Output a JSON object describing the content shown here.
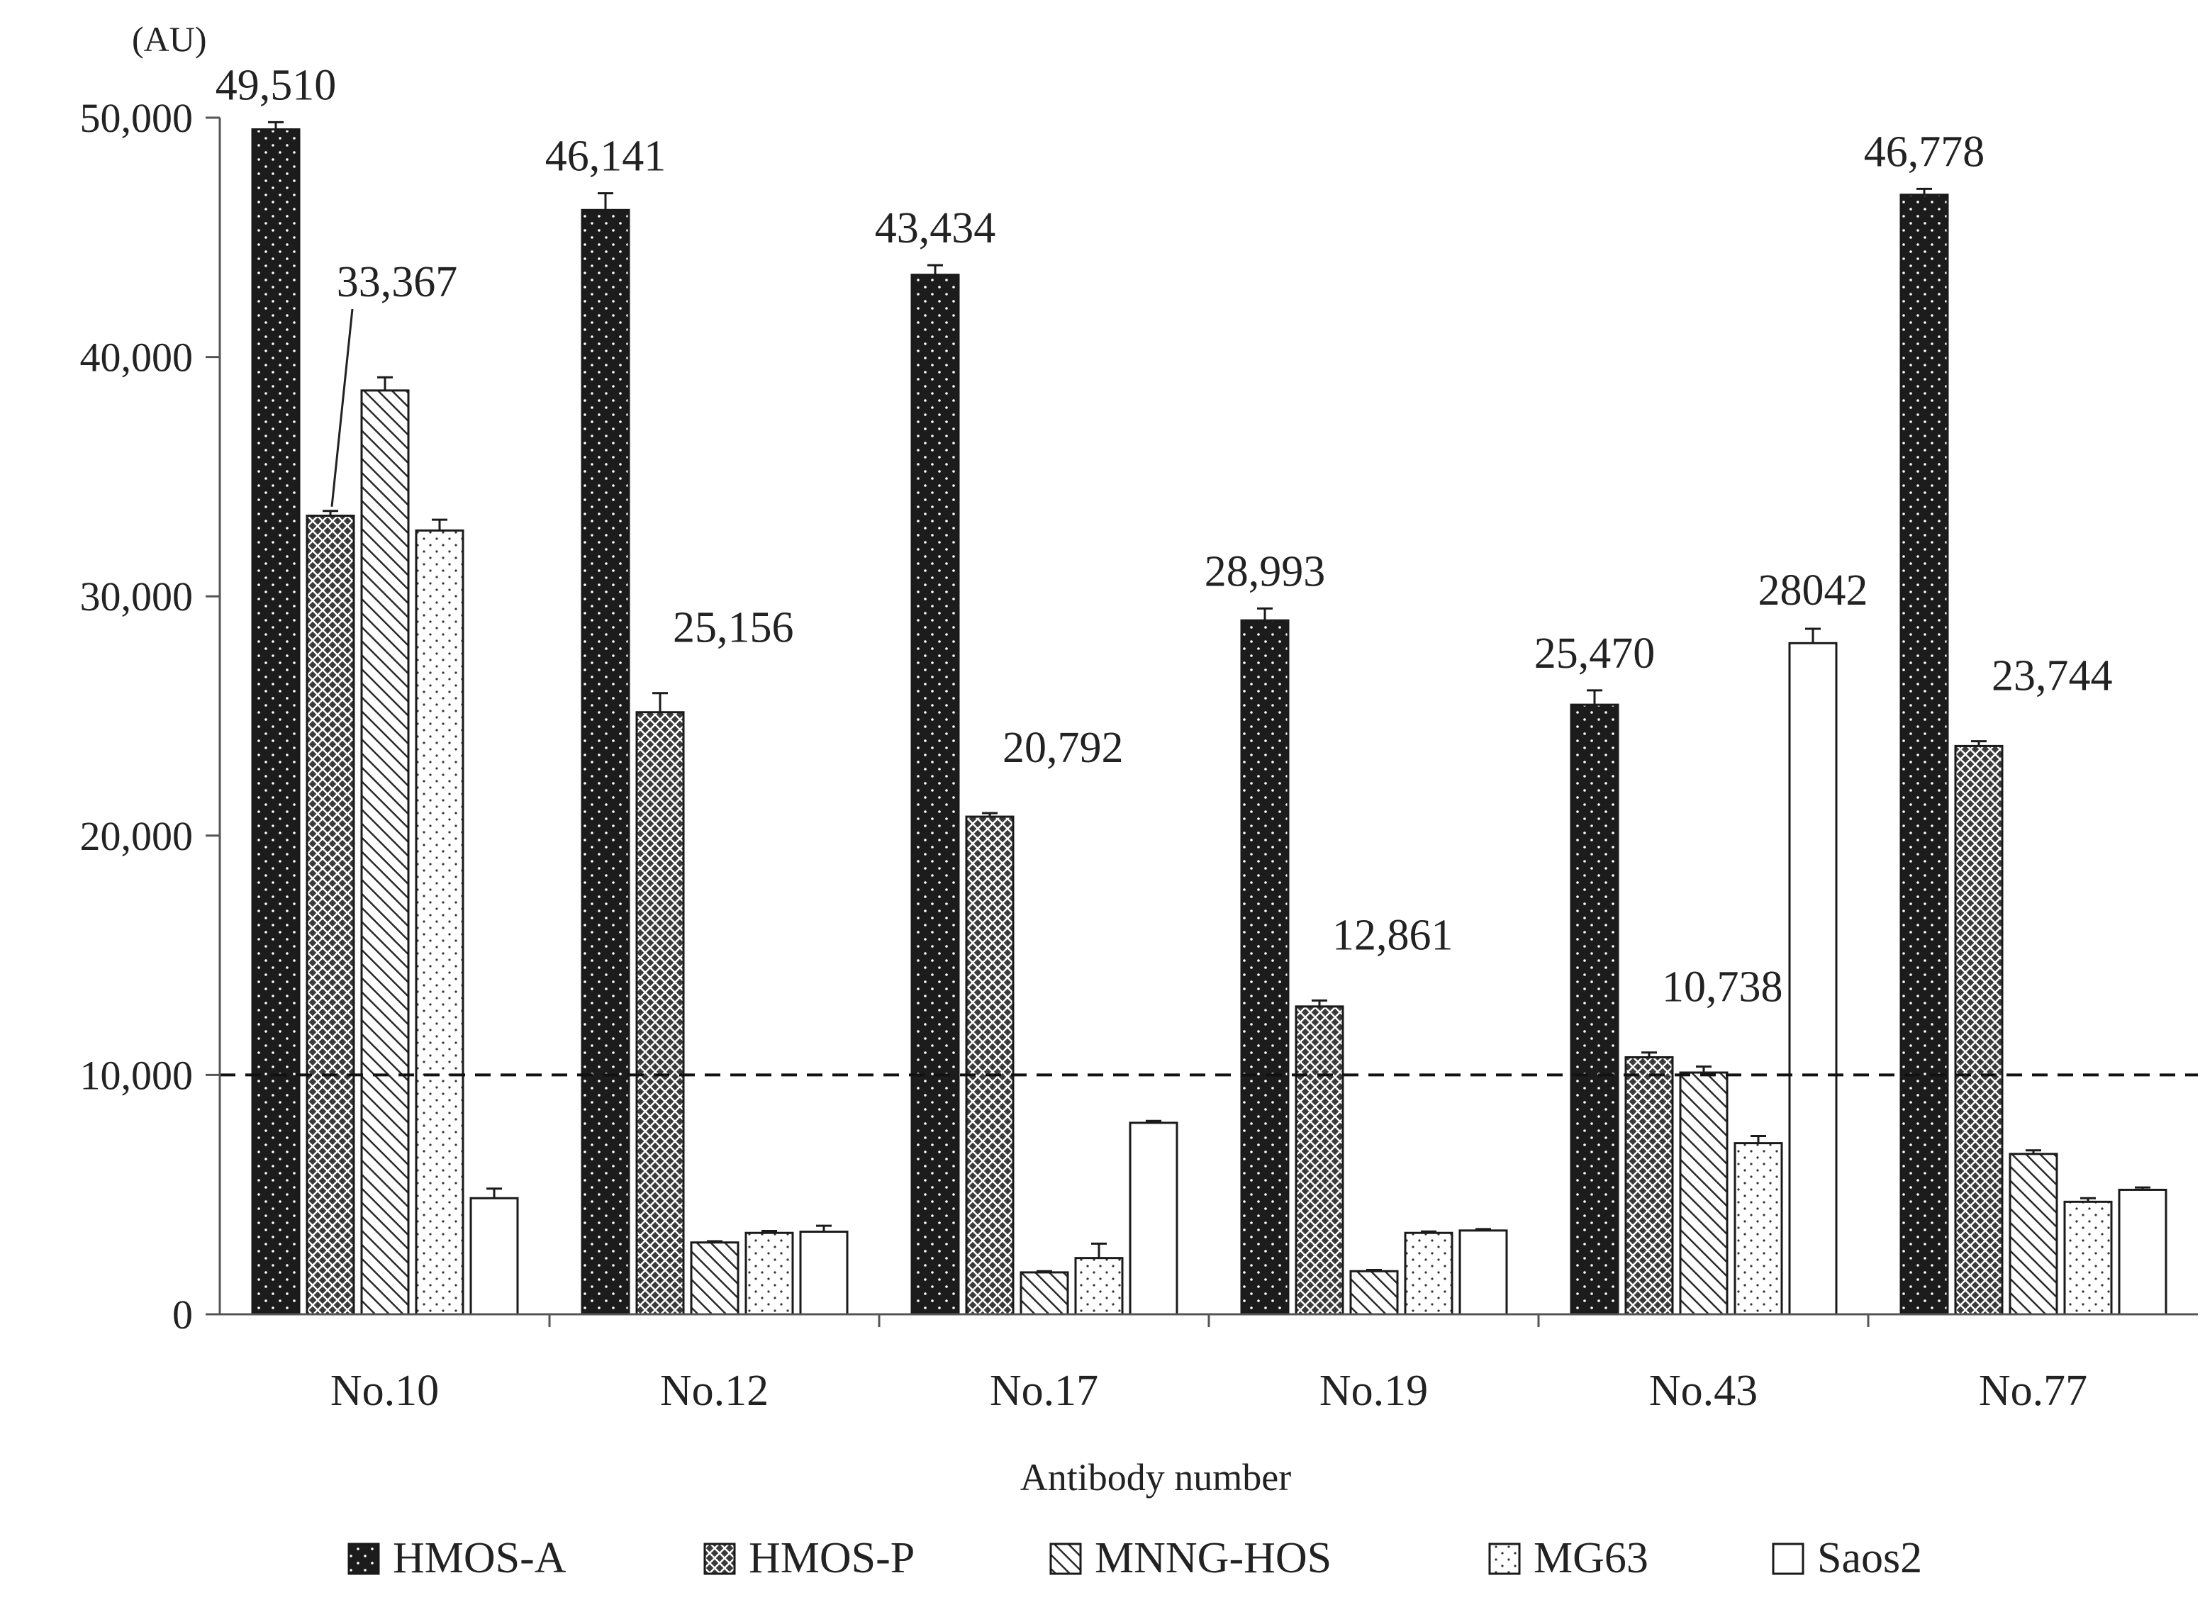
{
  "chart_data": {
    "type": "bar",
    "title": "",
    "unit_label": "(AU)",
    "xlabel": "Antibody number",
    "ylabel": "",
    "ylim": [
      0,
      50000
    ],
    "yticks": [
      0,
      10000,
      20000,
      30000,
      40000,
      50000
    ],
    "ytick_labels": [
      "0",
      "10,000",
      "20,000",
      "30,000",
      "40,000",
      "50,000"
    ],
    "threshold": 10000,
    "categories": [
      "No.10",
      "No.12",
      "No.17",
      "No.19",
      "No.43",
      "No.77"
    ],
    "series": [
      {
        "name": "HMOS-A",
        "pattern": "dots-dark",
        "values": [
          49510,
          46141,
          43434,
          28993,
          25470,
          46778
        ],
        "errors": [
          300,
          700,
          400,
          500,
          600,
          250
        ]
      },
      {
        "name": "HMOS-P",
        "pattern": "crosshatch",
        "values": [
          33367,
          25156,
          20792,
          12861,
          10738,
          23744
        ],
        "errors": [
          200,
          800,
          150,
          250,
          200,
          200
        ]
      },
      {
        "name": "MNNG-HOS",
        "pattern": "diagonal",
        "values": [
          38600,
          3000,
          1750,
          1800,
          10100,
          6700
        ],
        "errors": [
          550,
          50,
          50,
          50,
          250,
          150
        ]
      },
      {
        "name": "MG63",
        "pattern": "dots-light",
        "values": [
          32750,
          3400,
          2350,
          3400,
          7150,
          4700
        ],
        "errors": [
          450,
          80,
          600,
          60,
          300,
          150
        ]
      },
      {
        "name": "Saos2",
        "pattern": "blank",
        "values": [
          4850,
          3450,
          8000,
          3500,
          28042,
          5200
        ],
        "errors": [
          400,
          250,
          80,
          60,
          600,
          100
        ]
      }
    ],
    "data_labels": [
      {
        "category": "No.10",
        "series": "HMOS-A",
        "text": "49,510"
      },
      {
        "category": "No.10",
        "series": "HMOS-P",
        "text": "33,367"
      },
      {
        "category": "No.12",
        "series": "HMOS-A",
        "text": "46,141"
      },
      {
        "category": "No.12",
        "series": "HMOS-P",
        "text": "25,156"
      },
      {
        "category": "No.17",
        "series": "HMOS-A",
        "text": "43,434"
      },
      {
        "category": "No.17",
        "series": "HMOS-P",
        "text": "20,792"
      },
      {
        "category": "No.19",
        "series": "HMOS-A",
        "text": "28,993"
      },
      {
        "category": "No.19",
        "series": "HMOS-P",
        "text": "12,861"
      },
      {
        "category": "No.43",
        "series": "HMOS-A",
        "text": "25,470"
      },
      {
        "category": "No.43",
        "series": "HMOS-P",
        "text": "10,738"
      },
      {
        "category": "No.43",
        "series": "Saos2",
        "text": "28042"
      },
      {
        "category": "No.77",
        "series": "HMOS-A",
        "text": "46,778"
      },
      {
        "category": "No.77",
        "series": "HMOS-P",
        "text": "23,744"
      }
    ],
    "legend": {
      "position": "bottom",
      "entries": [
        "HMOS-A",
        "HMOS-P",
        "MNNG-HOS",
        "MG63",
        "Saos2"
      ]
    }
  }
}
